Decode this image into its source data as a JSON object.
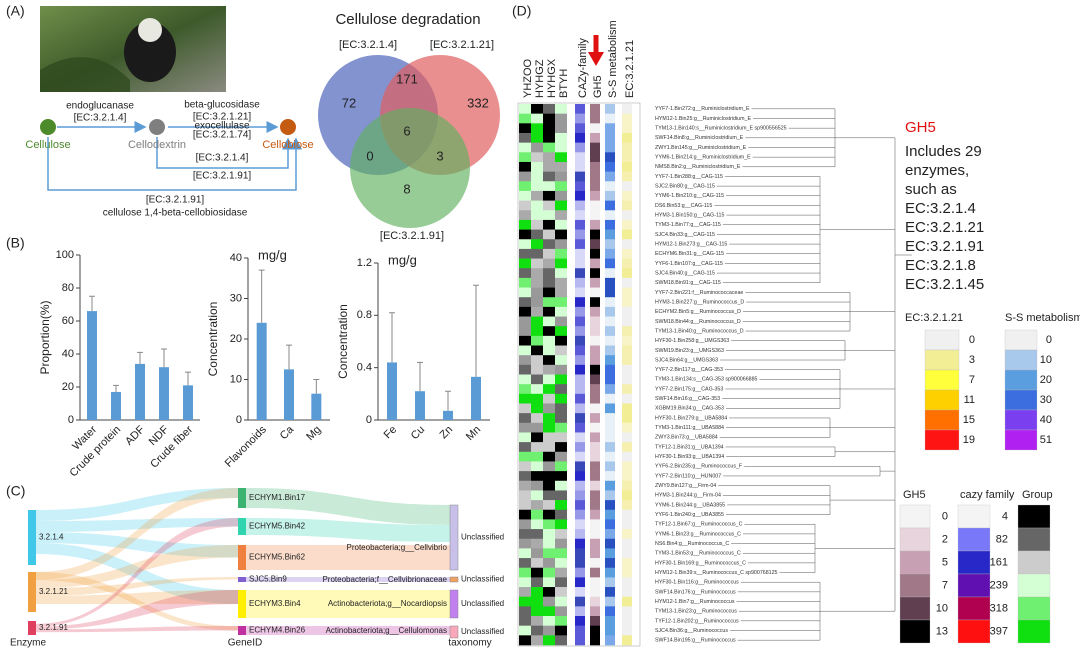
{
  "panel_labels": [
    "(A)",
    "(B)",
    "(C)",
    "(D)"
  ],
  "pathway": {
    "nodes": [
      "Cellulose",
      "Cellodextrin",
      "Cellobiose"
    ],
    "labels": [
      "endoglucanase",
      "[EC:3.2.1.4]",
      "beta-glucosidase",
      "[EC:3.2.1.21]",
      "exocellulase",
      "[EC:3.2.1.74]",
      "[EC:3.2.1.4]",
      "[EC:3.2.1.91]",
      "[EC:3.2.1.91]",
      "cellulose 1,4-beta-cellobiosidase"
    ]
  },
  "venn": {
    "title": "Cellulose degradation",
    "sets": [
      "[EC:3.2.1.4]",
      "[EC:3.2.1.21]",
      "[EC:3.2.1.91]"
    ],
    "counts": [
      72,
      171,
      332,
      6,
      0,
      3,
      8
    ]
  },
  "chart_data": [
    {
      "type": "bar",
      "ylabel": "Proportion(%)",
      "categories": [
        "Water",
        "Crude protein",
        "ADF",
        "NDF",
        "Crude fiber"
      ],
      "values": [
        66,
        17,
        34,
        32,
        21
      ],
      "errors": [
        9,
        4,
        7,
        11,
        8
      ],
      "color": "#5b9bd5",
      "ylim": [
        0,
        100
      ],
      "yticks": [
        0,
        20,
        40,
        60,
        80,
        100
      ]
    },
    {
      "type": "bar",
      "ylabel": "Concentration",
      "unit": "mg/g",
      "categories": [
        "Flavonoids",
        "Ca",
        "Mg"
      ],
      "values": [
        24,
        12.5,
        6.5
      ],
      "errors": [
        13,
        6,
        3.5
      ],
      "color": "#5b9bd5",
      "ylim": [
        0,
        40
      ],
      "yticks": [
        0,
        10,
        20,
        30,
        40
      ]
    },
    {
      "type": "bar",
      "ylabel": "Concentration",
      "unit": "mg/g",
      "categories": [
        "Fe",
        "Cu",
        "Zn",
        "Mn"
      ],
      "values": [
        0.44,
        0.22,
        0.07,
        0.33
      ],
      "errors": [
        0.38,
        0.22,
        0.15,
        0.7
      ],
      "color": "#5b9bd5",
      "ylim": [
        0,
        1.2
      ],
      "yticks": [
        0,
        0.4,
        0.8,
        1.2
      ]
    }
  ],
  "sankey": {
    "enzymes": [
      "3.2.1.4",
      "3.2.1.21",
      "3.2.1.91"
    ],
    "genes": [
      "ECHYM1.Bin17",
      "ECHYM5.Bin42",
      "ECHYM5.Bin62",
      "SJC5.Bin9",
      "ECHYM3.Bin4",
      "ECHYM4.Bin26"
    ],
    "taxa": [
      "Proteobacteria;g__Cellvibrio",
      "Proteobacteria;f__Cellvibrionaceae",
      "Actinobacteriota;g__Nocardiopsis",
      "Actinobacteriota;g__Cellulomonas"
    ],
    "targets": [
      "Unclassified",
      "Unclassified",
      "Unclassified",
      "Unclassified"
    ],
    "axis_labels": [
      "Enzyme",
      "GeneID",
      "taxonomy"
    ]
  },
  "heatmap": {
    "columns": [
      "YHZOO",
      "HYHGZ",
      "HYHGX",
      "BTYH",
      "CAZy-family",
      "GH5",
      "S-S metabolism",
      "EC:3.2.1.21"
    ]
  },
  "tree": {
    "leaves": [
      "YYF7-1.Bin272:g__Ruminiclostridium_E",
      "HYM12-1.Bin25:g__Ruminiclostridium_E",
      "TYM13-1.Bin140:s__Ruminiclostridium_E sp900556525",
      "SWF14.Bin8:g__Ruminiclostridium_E",
      "ZWY1.Bin145:g__Ruminiclostridium_E",
      "YYM6-1.Bin214:g__Ruminiclostridium_E",
      "NMS8.Bin2:g__Ruminiclostridium_E",
      "YYF7-1.Bin288:g__CAG-115",
      "SJC2.Bin80:g__CAG-115",
      "YYM6-1.Bin210:g__CAG-115",
      "DS6.Bin53:g__CAG-115",
      "HYM3-1.Bin150:g__CAG-115",
      "TYM3-1.Bin77:g__CAG-115",
      "SJC4.Bin33:g__CAG-115",
      "HYM12-1.Bin273:g__CAG-115",
      "ECHYM6.Bin31:g__CAG-115",
      "YYF6-1.Bin107:g__CAG-115",
      "SJC4.Bin40:g__CAG-115",
      "SWM18.Bin91:g__CAG-115",
      "YYF7-2.Bin221:f__Ruminococcaceae",
      "HYM3-1.Bin227:g__Ruminococcus_D",
      "ECHYM2.Bin5:g__Ruminococcus_D",
      "SWM18.Bin44:g__Ruminococcus_D",
      "TYM13-1.Bin40:g__Ruminococcus_D",
      "HYF30-1.Bin258:g__UMGS363",
      "SWM19.Bin23:g__UMGS363",
      "SJC4.Bin64:g__UMGS363",
      "YYF7-2.Bin117:g__CAG-353",
      "TYM3-1.Bin134:s__CAG-353 sp900066885",
      "YYF7-2.Bin175:g__CAG-353",
      "SWF14.Bin16:g__CAG-353",
      "XGBM19.Bin34:g__CAG-353",
      "HYF30-1.Bin279:g__UBA5884",
      "TYM3-1.Bin111:g__UBA5884",
      "ZWY3.Bin73:g__UBA5884",
      "TYF12-1.Bin31:g__UBA1394",
      "HYF30-1.Bin93:g__UBA1394",
      "YYF6-2.Bin235:g__Ruminococcus_F",
      "YYF7-2.Bin110:g__HUN007",
      "ZWY9.Bin127:g__Firm-04",
      "HYM3-1.Bin244:g__Firm-04",
      "YYM6-1.Bin244:g__UBA3855",
      "YYF6-1.Bin240:g__UBA3855",
      "TYF12-1.Bin67:g__Ruminococcus_C",
      "YYM6-1.Bin23:g__Ruminococcus_C",
      "NS6.Bin4:g__Ruminococcus_C",
      "TYM3-1.Bin53:g__Ruminococcus_C",
      "HYF30-1.Bin169:g__Ruminococcus_C",
      "HYM12-1.Bin39:s__Ruminococcus_C sp900768125",
      "HYF30-1.Bin116:g__Ruminococcus",
      "SWF14.Bin176:g__Ruminococcus",
      "HYM12-1.Bin7:g__Ruminococcus",
      "TYM13-1.Bin23:g__Ruminococcus",
      "TYF12-1.Bin202:g__Ruminococcus",
      "SJC4.Bin36:g__Ruminococcus",
      "SWF14.Bin195:g__Ruminococcus"
    ]
  },
  "note": {
    "title": "GH5",
    "lines": [
      "Includes 29",
      "enzymes,",
      "such as",
      "EC:3.2.1.4",
      "EC:3.2.1.21",
      "EC:3.2.1.91",
      "EC:3.2.1.8",
      "EC:3.2.1.45"
    ]
  },
  "legends": [
    {
      "title": "EC:3.2.1.21",
      "labels": [
        0,
        3,
        7,
        11,
        15,
        19
      ],
      "colors": [
        "#f0f0f0",
        "#f2ee96",
        "#ffff3c",
        "#ffd000",
        "#ff7000",
        "#ff1414"
      ]
    },
    {
      "title": "S-S metabolism",
      "labels": [
        0,
        10,
        20,
        30,
        40,
        51
      ],
      "colors": [
        "#f0f0f0",
        "#a8c8ec",
        "#5a9ee0",
        "#3c6ee0",
        "#7a40f0",
        "#b020f0"
      ]
    },
    {
      "title": "GH5",
      "labels": [
        0,
        2,
        5,
        7,
        10,
        13
      ],
      "colors": [
        "#f4f4f4",
        "#e8d4dc",
        "#c8a0b4",
        "#a07888",
        "#604050",
        "#000000"
      ]
    },
    {
      "title": "cazy family",
      "labels": [
        4,
        82,
        161,
        239,
        318,
        397
      ],
      "colors": [
        "#f4f4f4",
        "#7878f8",
        "#2828c8",
        "#6010b0",
        "#b00050",
        "#ff1010"
      ]
    },
    {
      "title": "Group",
      "colors": [
        "#000000",
        "#666666",
        "#cccccc",
        "#d4ffd4",
        "#70f070",
        "#10e010"
      ]
    }
  ]
}
